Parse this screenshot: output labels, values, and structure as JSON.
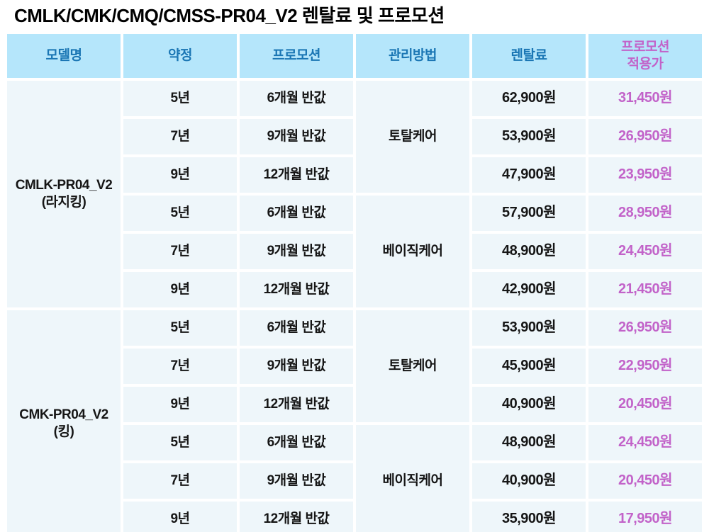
{
  "title": "CMLK/CMK/CMQ/CMSS-PR04_V2 렌탈료 및 프로모션",
  "colors": {
    "header_bg": "#b5e6fb",
    "header_text": "#1a76b4",
    "accent_pink": "#c263c9",
    "cell_bg": "#eef6fa",
    "cell_text": "#161616",
    "page_bg": "#ffffff"
  },
  "table": {
    "headers": [
      {
        "lines": [
          "모델명"
        ],
        "accent": false
      },
      {
        "lines": [
          "약정"
        ],
        "accent": false
      },
      {
        "lines": [
          "프로모션"
        ],
        "accent": false
      },
      {
        "lines": [
          "관리방법"
        ],
        "accent": false
      },
      {
        "lines": [
          "렌탈료"
        ],
        "accent": false
      },
      {
        "lines": [
          "프로모션",
          "적용가"
        ],
        "accent": true
      }
    ],
    "groups": [
      {
        "model_lines": [
          "CMLK-PR04_V2",
          "(라지킹)"
        ],
        "sections": [
          {
            "care": "토탈케어",
            "rows": [
              {
                "term": "5년",
                "promo": "6개월 반값",
                "rental": "62,900원",
                "promo_price": "31,450원"
              },
              {
                "term": "7년",
                "promo": "9개월 반값",
                "rental": "53,900원",
                "promo_price": "26,950원"
              },
              {
                "term": "9년",
                "promo": "12개월 반값",
                "rental": "47,900원",
                "promo_price": "23,950원"
              }
            ]
          },
          {
            "care": "베이직케어",
            "rows": [
              {
                "term": "5년",
                "promo": "6개월 반값",
                "rental": "57,900원",
                "promo_price": "28,950원"
              },
              {
                "term": "7년",
                "promo": "9개월 반값",
                "rental": "48,900원",
                "promo_price": "24,450원"
              },
              {
                "term": "9년",
                "promo": "12개월 반값",
                "rental": "42,900원",
                "promo_price": "21,450원"
              }
            ]
          }
        ]
      },
      {
        "model_lines": [
          "CMK-PR04_V2",
          "(킹)"
        ],
        "sections": [
          {
            "care": "토탈케어",
            "rows": [
              {
                "term": "5년",
                "promo": "6개월 반값",
                "rental": "53,900원",
                "promo_price": "26,950원"
              },
              {
                "term": "7년",
                "promo": "9개월 반값",
                "rental": "45,900원",
                "promo_price": "22,950원"
              },
              {
                "term": "9년",
                "promo": "12개월 반값",
                "rental": "40,900원",
                "promo_price": "20,450원"
              }
            ]
          },
          {
            "care": "베이직케어",
            "rows": [
              {
                "term": "5년",
                "promo": "6개월 반값",
                "rental": "48,900원",
                "promo_price": "24,450원"
              },
              {
                "term": "7년",
                "promo": "9개월 반값",
                "rental": "40,900원",
                "promo_price": "20,450원"
              },
              {
                "term": "9년",
                "promo": "12개월 반값",
                "rental": "35,900원",
                "promo_price": "17,950원"
              }
            ]
          }
        ]
      }
    ]
  }
}
